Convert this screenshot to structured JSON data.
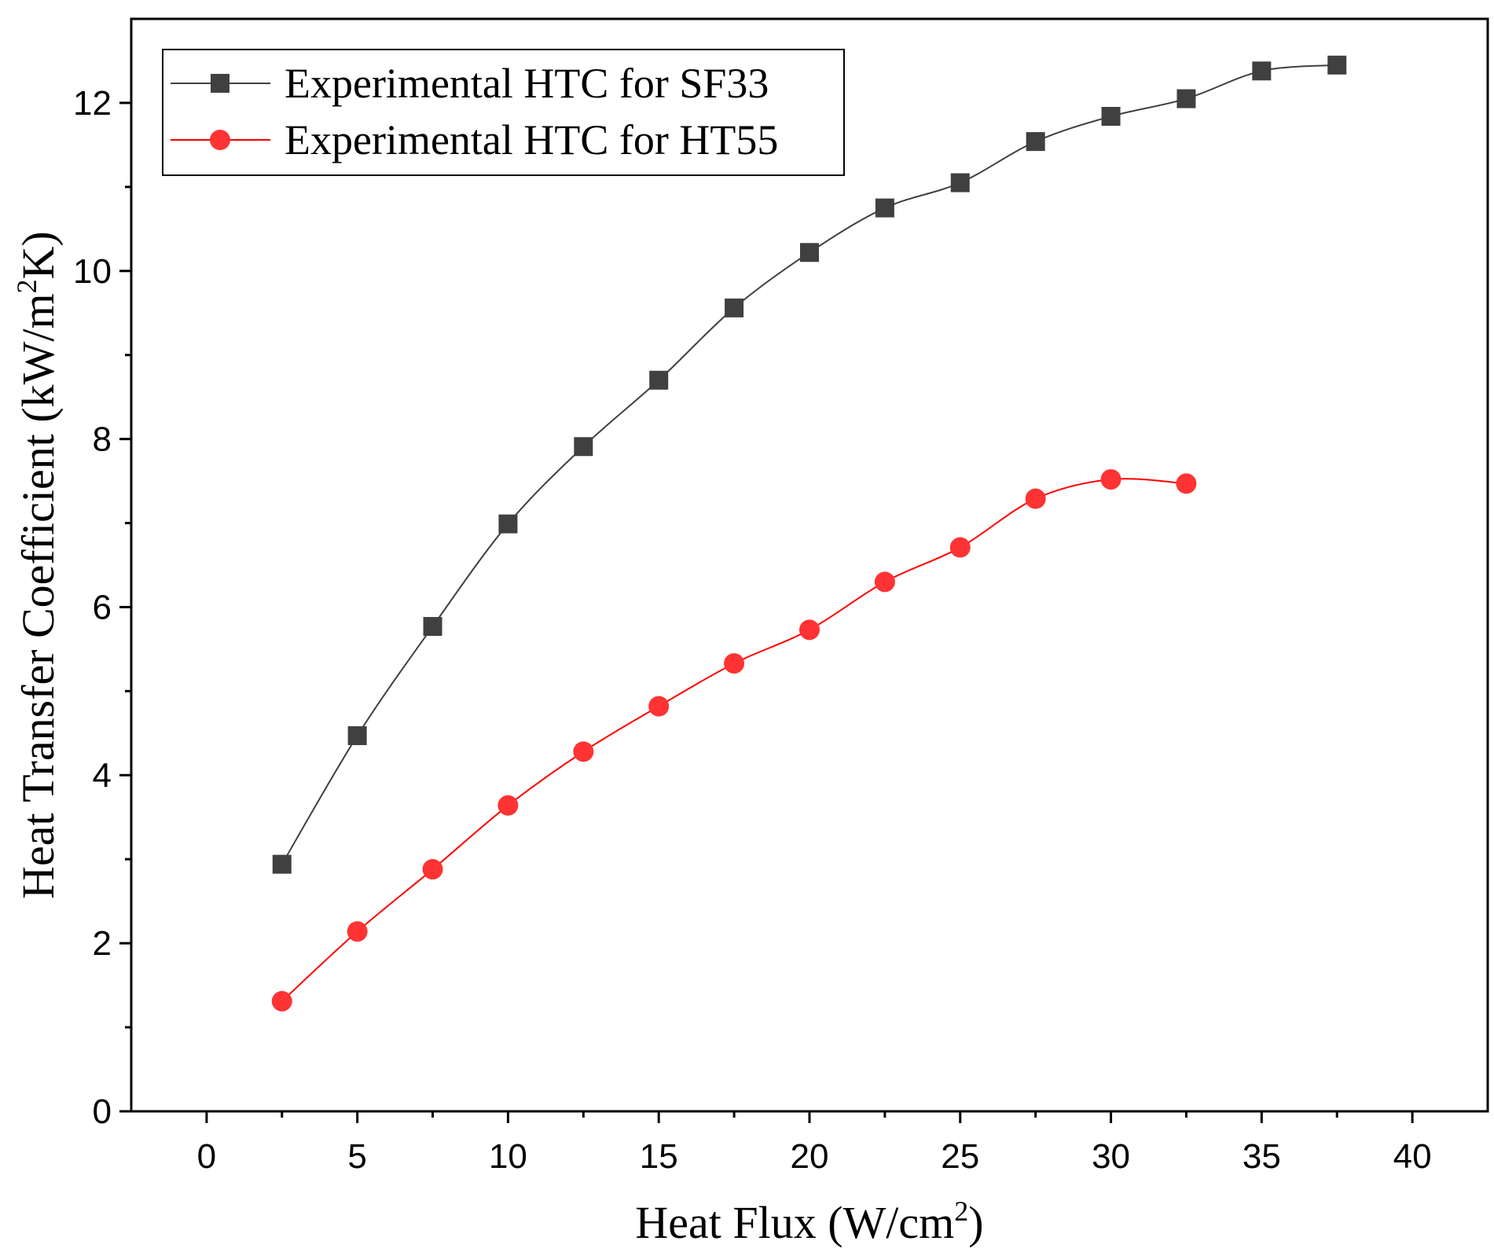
{
  "chart_data": {
    "type": "line",
    "title": "",
    "xlabel": "Heat Flux (W/cm²)",
    "ylabel": "Heat Transfer Coefficient (kW/m²K)",
    "xlabel_parts": {
      "before": "Heat Flux (W/cm",
      "sup": "2",
      "after": ")"
    },
    "ylabel_parts": {
      "before": "Heat Transfer Coefficient (kW/m",
      "sup": "2",
      "after": "K)"
    },
    "xlim": [
      -2.5,
      42.5
    ],
    "ylim": [
      0,
      13
    ],
    "xticks": [
      "0",
      "5",
      "10",
      "15",
      "20",
      "25",
      "30",
      "35",
      "40"
    ],
    "yticks": [
      "0",
      "2",
      "4",
      "6",
      "8",
      "10",
      "12"
    ],
    "legend_position": "top-left",
    "grid": false,
    "series": [
      {
        "name": "Experimental HTC for SF33",
        "marker": "square",
        "color": "#404040",
        "line_color": "#404040",
        "x": [
          2.5,
          5,
          7.5,
          10,
          12.5,
          15,
          17.5,
          20,
          22.5,
          25,
          27.5,
          30,
          32.5,
          35,
          37.5
        ],
        "y": [
          2.94,
          4.47,
          5.77,
          6.99,
          7.91,
          8.7,
          9.56,
          10.22,
          10.75,
          11.05,
          11.54,
          11.84,
          12.05,
          12.38,
          12.45
        ]
      },
      {
        "name": "Experimental HTC for HT55",
        "marker": "circle",
        "color": "#ff3333",
        "line_color": "#ff0000",
        "x": [
          2.5,
          5,
          7.5,
          10,
          12.5,
          15,
          17.5,
          20,
          22.5,
          25,
          27.5,
          30,
          32.5
        ],
        "y": [
          1.31,
          2.14,
          2.88,
          3.64,
          4.28,
          4.82,
          5.33,
          5.73,
          6.3,
          6.71,
          7.29,
          7.52,
          7.47
        ]
      }
    ]
  }
}
